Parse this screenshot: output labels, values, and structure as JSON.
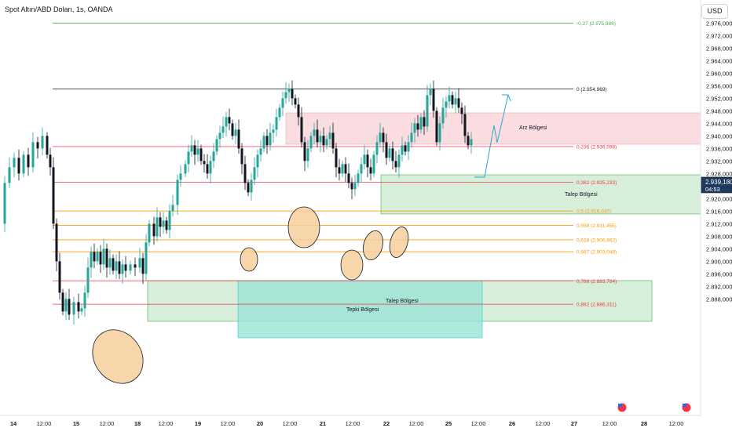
{
  "header": {
    "title": "Spot Altın/ABD Doları, 1s, OANDA",
    "currency": "USD"
  },
  "colors": {
    "bull": "#26a69a",
    "bear": "#131722",
    "fib_red": "#f23645",
    "fib_orange": "#ff9800",
    "fib_green": "#4caf50",
    "supply_fill": "#f8d7da",
    "demand_fill": "#d3ecd6",
    "reaction_fill": "#9be3d6",
    "ellipse_fill": "#f7cf9c",
    "arrow": "#2ba6c9"
  },
  "price_axis": {
    "ticks": [
      "2.976,000",
      "2.972,000",
      "2.968,000",
      "2.964,000",
      "2.960,000",
      "2.956,000",
      "2.952,000",
      "2.948,000",
      "2.944,000",
      "2.940,000",
      "2.936,000",
      "2.932,000",
      "2.928,000",
      "2.924,000",
      "2.920,000",
      "2.916,000",
      "2.912,000",
      "2.908,000",
      "2.904,000",
      "2.900,000",
      "2.896,000",
      "2.892,000",
      "2.888,000"
    ],
    "current_price": "2.939,180",
    "countdown": "04:53"
  },
  "time_axis": {
    "labels": [
      "14",
      "12:00",
      "15",
      "12:00",
      "18",
      "12:00",
      "19",
      "12:00",
      "20",
      "12:00",
      "21",
      "12:00",
      "22",
      "12:00",
      "25",
      "12:00",
      "26",
      "12:00",
      "27",
      "12:00",
      "28",
      "12:00"
    ]
  },
  "fib_levels": [
    {
      "label": "-0,27 (2.975,986)",
      "color": "green"
    },
    {
      "label": "0 (2.954,969)",
      "color": "black"
    },
    {
      "label": "0,236 (2.936,598)",
      "color": "red"
    },
    {
      "label": "0,382 (2.925,233)",
      "color": "red"
    },
    {
      "label": "0,5 (2.916,047)",
      "color": "orange"
    },
    {
      "label": "0,559 (2.911,455)",
      "color": "orange"
    },
    {
      "label": "0,618 (2.906,862)",
      "color": "orange"
    },
    {
      "label": "0,667 (2.903,048)",
      "color": "orange"
    },
    {
      "label": "0,786 (2.893,784)",
      "color": "red"
    },
    {
      "label": "0,882 (2.886,311)",
      "color": "red"
    }
  ],
  "zones": {
    "supply": "Arz Bölgesi",
    "demand_upper": "Talep Bölgesi",
    "demand_lower": "Talep Bölgesi",
    "reaction": "Tepki Bölgesi"
  }
}
